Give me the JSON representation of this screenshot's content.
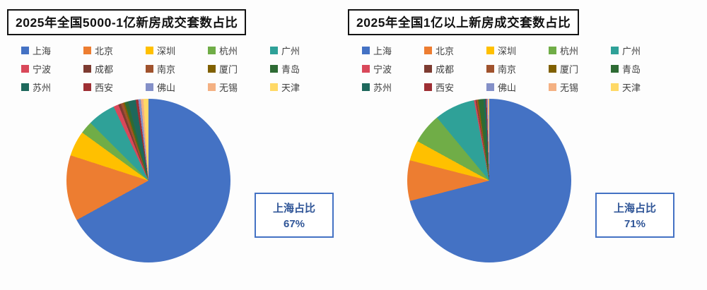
{
  "panels": [
    {
      "title": "2025年全国5000-1亿新房成交套数占比",
      "annotation": {
        "title": "上海占比",
        "value": "67%"
      }
    },
    {
      "title": "2025年全国1亿以上新房成交套数占比",
      "annotation": {
        "title": "上海占比",
        "value": "71%"
      }
    }
  ],
  "legend": {
    "items": [
      {
        "label": "上海",
        "color": "#4472C4"
      },
      {
        "label": "北京",
        "color": "#ED7D31"
      },
      {
        "label": "深圳",
        "color": "#FFC000"
      },
      {
        "label": "杭州",
        "color": "#70AD47"
      },
      {
        "label": "广州",
        "color": "#2FA198"
      },
      {
        "label": "宁波",
        "color": "#D9485A"
      },
      {
        "label": "成都",
        "color": "#7D3B31"
      },
      {
        "label": "南京",
        "color": "#A0522D"
      },
      {
        "label": "厦门",
        "color": "#806000"
      },
      {
        "label": "青岛",
        "color": "#2E6B34"
      },
      {
        "label": "苏州",
        "color": "#1E685C"
      },
      {
        "label": "西安",
        "color": "#9E2F34"
      },
      {
        "label": "佛山",
        "color": "#8490C8"
      },
      {
        "label": "无锡",
        "color": "#F4B183"
      },
      {
        "label": "天津",
        "color": "#FFD966"
      }
    ]
  },
  "chart_data": [
    {
      "type": "pie",
      "title": "2025年全国5000-1亿新房成交套数占比",
      "categories": [
        "上海",
        "北京",
        "深圳",
        "杭州",
        "广州",
        "宁波",
        "成都",
        "南京",
        "厦门",
        "青岛",
        "苏州",
        "西安",
        "佛山",
        "无锡",
        "天津"
      ],
      "values": [
        67,
        13,
        5,
        2.5,
        5.5,
        1,
        0.5,
        0.5,
        0.3,
        0.7,
        1.5,
        0.5,
        0.5,
        0.5,
        1
      ],
      "unit": "%",
      "annotation": "上海占比 67%",
      "legend_position": "top",
      "start_angle_deg": 0,
      "direction": "clockwise",
      "colors": [
        "#4472C4",
        "#ED7D31",
        "#FFC000",
        "#70AD47",
        "#2FA198",
        "#D9485A",
        "#7D3B31",
        "#A0522D",
        "#806000",
        "#2E6B34",
        "#1E685C",
        "#9E2F34",
        "#8490C8",
        "#F4B183",
        "#FFD966"
      ]
    },
    {
      "type": "pie",
      "title": "2025年全国1亿以上新房成交套数占比",
      "categories": [
        "上海",
        "北京",
        "深圳",
        "杭州",
        "广州",
        "宁波",
        "成都",
        "南京",
        "厦门",
        "青岛",
        "苏州",
        "西安",
        "佛山",
        "无锡",
        "天津"
      ],
      "values": [
        71,
        8,
        4,
        6,
        8,
        0.3,
        0.2,
        0.2,
        0.2,
        1,
        0.4,
        0.2,
        0.2,
        0.2,
        0.1
      ],
      "unit": "%",
      "annotation": "上海占比 71%",
      "legend_position": "top",
      "start_angle_deg": 0,
      "direction": "clockwise",
      "colors": [
        "#4472C4",
        "#ED7D31",
        "#FFC000",
        "#70AD47",
        "#2FA198",
        "#D9485A",
        "#7D3B31",
        "#A0522D",
        "#806000",
        "#2E6B34",
        "#1E685C",
        "#9E2F34",
        "#8490C8",
        "#F4B183",
        "#FFD966"
      ]
    }
  ]
}
